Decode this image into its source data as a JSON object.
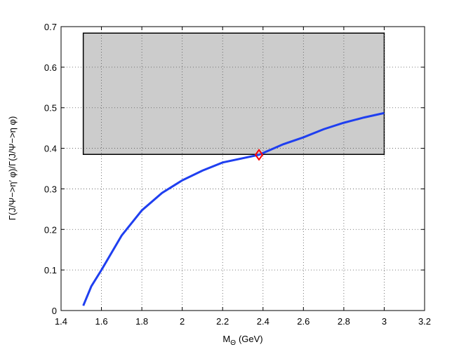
{
  "chart_data": {
    "type": "line",
    "xlabel": {
      "main": "M",
      "sub": "Θ",
      "unit": "(GeV)"
    },
    "ylabel": "Γ(J/Ψ−>η′ φ)/Γ(J/Ψ−>η φ)",
    "x": [
      1.51,
      1.55,
      1.6,
      1.7,
      1.8,
      1.9,
      2.0,
      2.1,
      2.2,
      2.38,
      2.5,
      2.6,
      2.7,
      2.8,
      2.9,
      3.0
    ],
    "series": [
      {
        "color": "#1f3ff0",
        "values": [
          0.012,
          0.06,
          0.1,
          0.185,
          0.247,
          0.29,
          0.321,
          0.345,
          0.365,
          0.384,
          0.41,
          0.427,
          0.447,
          0.463,
          0.476,
          0.487
        ]
      }
    ],
    "band": {
      "x": [
        1.51,
        3.0
      ],
      "y": [
        0.385,
        0.684
      ],
      "color": "#cccccc"
    },
    "point": {
      "x": 2.38,
      "y": 0.384,
      "color": "#ff0000"
    },
    "xlim": [
      1.4,
      3.2
    ],
    "xticks": [
      1.4,
      1.6,
      1.8,
      2,
      2.2,
      2.4,
      2.6,
      2.8,
      3,
      3.2
    ],
    "ylim": [
      0,
      0.7
    ],
    "yticks": [
      0,
      0.1,
      0.2,
      0.3,
      0.4,
      0.5,
      0.6,
      0.7
    ],
    "grid": true
  }
}
